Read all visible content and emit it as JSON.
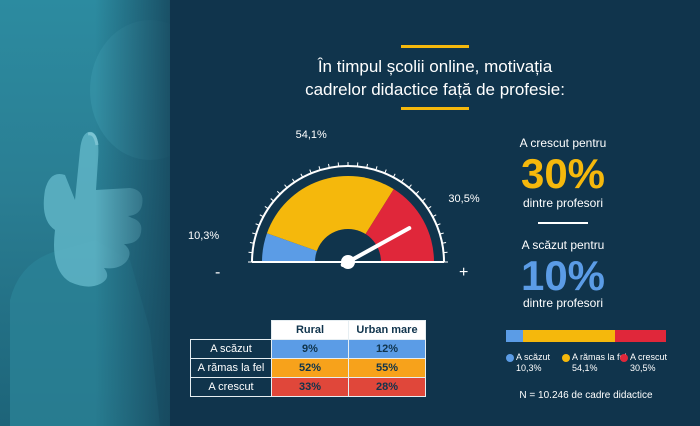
{
  "title": {
    "line1": "În timpul școlii online, motivația",
    "line2": "cadrelor didactice față de profesie:"
  },
  "colors": {
    "decreased": "#5b9ce6",
    "same": "#f5b80c",
    "increased": "#e0273a",
    "background": "#10344c"
  },
  "gauge": {
    "minus_label": "-",
    "plus_label": "+"
  },
  "stats": {
    "increased": {
      "caption_top": "A crescut pentru",
      "value": "30%",
      "caption_bottom": "dintre profesori",
      "color": "#f5b80c"
    },
    "decreased": {
      "caption_top": "A scăzut pentru",
      "value": "10%",
      "caption_bottom": "dintre profesori",
      "color": "#5b9ce6"
    }
  },
  "table": {
    "headers": [
      "Rural",
      "Urban mare"
    ],
    "rows": [
      {
        "label": "A scăzut",
        "values": [
          "9%",
          "12%"
        ],
        "color": "#5b9ce6"
      },
      {
        "label": "A rămas la fel",
        "values": [
          "52%",
          "55%"
        ],
        "color": "#f7a21b"
      },
      {
        "label": "A crescut",
        "values": [
          "33%",
          "28%"
        ],
        "color": "#e0473a"
      }
    ]
  },
  "stacked_legend": [
    {
      "label": "A scăzut",
      "value": "10,3%",
      "color": "#5b9ce6"
    },
    {
      "label": "A rămas la fel",
      "value": "54,1%",
      "color": "#f5b80c"
    },
    {
      "label": "A crescut",
      "value": "30,5%",
      "color": "#e0273a"
    }
  ],
  "note": "N = 10.246 de cadre didactice",
  "chart_data": [
    {
      "type": "pie",
      "categories": [
        "A scăzut",
        "A rămas la fel",
        "A crescut"
      ],
      "values": [
        10.3,
        54.1,
        30.5
      ],
      "labels": [
        "10,3%",
        "54,1%",
        "30,5%"
      ],
      "colors": [
        "#5b9ce6",
        "#f5b80c",
        "#e0273a"
      ]
    },
    {
      "type": "table",
      "columns": [
        "Rural",
        "Urban mare"
      ],
      "rows": [
        "A scăzut",
        "A rămas la fel",
        "A crescut"
      ],
      "values": [
        [
          9,
          12
        ],
        [
          52,
          55
        ],
        [
          33,
          28
        ]
      ]
    },
    {
      "type": "bar",
      "categories": [
        "A scăzut",
        "A rămas la fel",
        "A crescut"
      ],
      "values": [
        10.3,
        54.1,
        30.5
      ]
    }
  ]
}
